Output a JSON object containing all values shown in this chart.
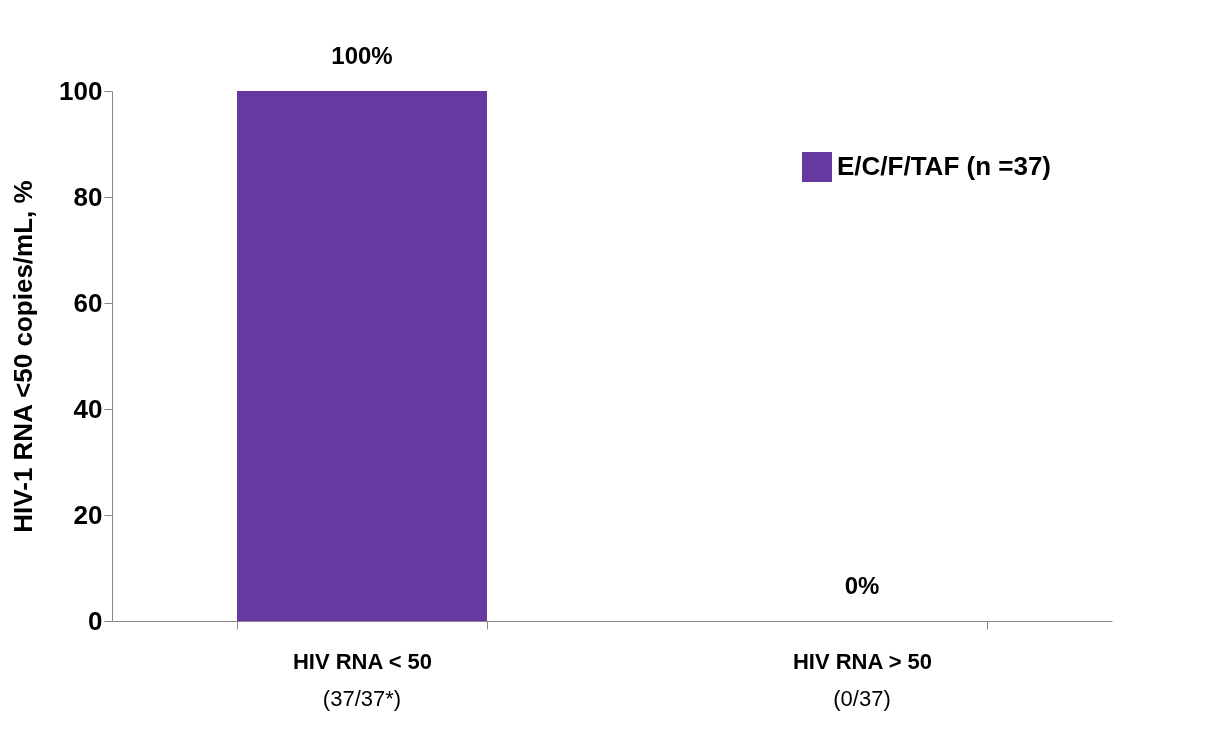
{
  "chart_data": {
    "type": "bar",
    "ylabel": "HIV-1 RNA <50 copies/mL, %",
    "categories": [
      "HIV RNA < 50",
      "HIV RNA > 50"
    ],
    "series": [
      {
        "name": "E/C/F/TAF (n =37)",
        "color": "#6639a0",
        "values": [
          100,
          0
        ],
        "value_labels": [
          "100%",
          "0%"
        ]
      }
    ],
    "ylim": [
      0,
      100
    ],
    "yticks": [
      0,
      20,
      40,
      60,
      80,
      100
    ],
    "grid": false,
    "legend": "top right",
    "annotations": [
      "(37/37*)",
      "(0/37)"
    ]
  }
}
